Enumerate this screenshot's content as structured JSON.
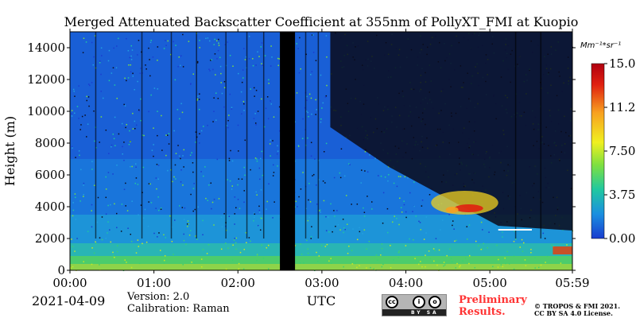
{
  "chart_data": {
    "type": "heatmap",
    "title": "Merged Attenuated Backscatter Coefficient at 355nm of PollyXT_FMI at Kuopio",
    "xlabel": "UTC",
    "ylabel": "Height (m)",
    "x_ticks": [
      "00:00",
      "01:00",
      "02:00",
      "03:00",
      "04:00",
      "05:00",
      "05:59"
    ],
    "x_range_hours": [
      0,
      5.983
    ],
    "y_ticks": [
      0,
      2000,
      4000,
      6000,
      8000,
      10000,
      12000,
      14000
    ],
    "ylim": [
      0,
      15000
    ],
    "colorbar": {
      "label": "Mm⁻¹*sr⁻¹",
      "ticks": [
        "0.00",
        "3.75",
        "7.50",
        "11.25",
        "15.00"
      ],
      "range": [
        0,
        15
      ],
      "colors": [
        "#1a3ccf",
        "#1a8fe0",
        "#20c8a0",
        "#7ee040",
        "#f0f020",
        "#f8a020",
        "#e02010",
        "#b00010"
      ]
    },
    "features": {
      "data_gap_hours": [
        2.5,
        2.68
      ],
      "boundary_layer_top_m": 1700,
      "aerosol_layer": {
        "start_hours": 4.3,
        "end_hours": 5.1,
        "base_m": 3500,
        "top_m": 5000
      },
      "signal_loss_after_hours": 3.1
    }
  },
  "footer": {
    "date": "2021-04-09",
    "version": "Version: 2.0",
    "calibration": "Calibration: Raman",
    "utc": "UTC",
    "preliminary_line1": "Preliminary",
    "preliminary_line2": "Results.",
    "copyright_line1": "© TROPOS & FMI 2021.",
    "copyright_line2": "CC BY SA 4.0 License.",
    "license_badge": {
      "icons": [
        "cc-icon",
        "by-icon",
        "sa-icon"
      ],
      "labels": [
        "BY",
        "SA"
      ]
    }
  }
}
